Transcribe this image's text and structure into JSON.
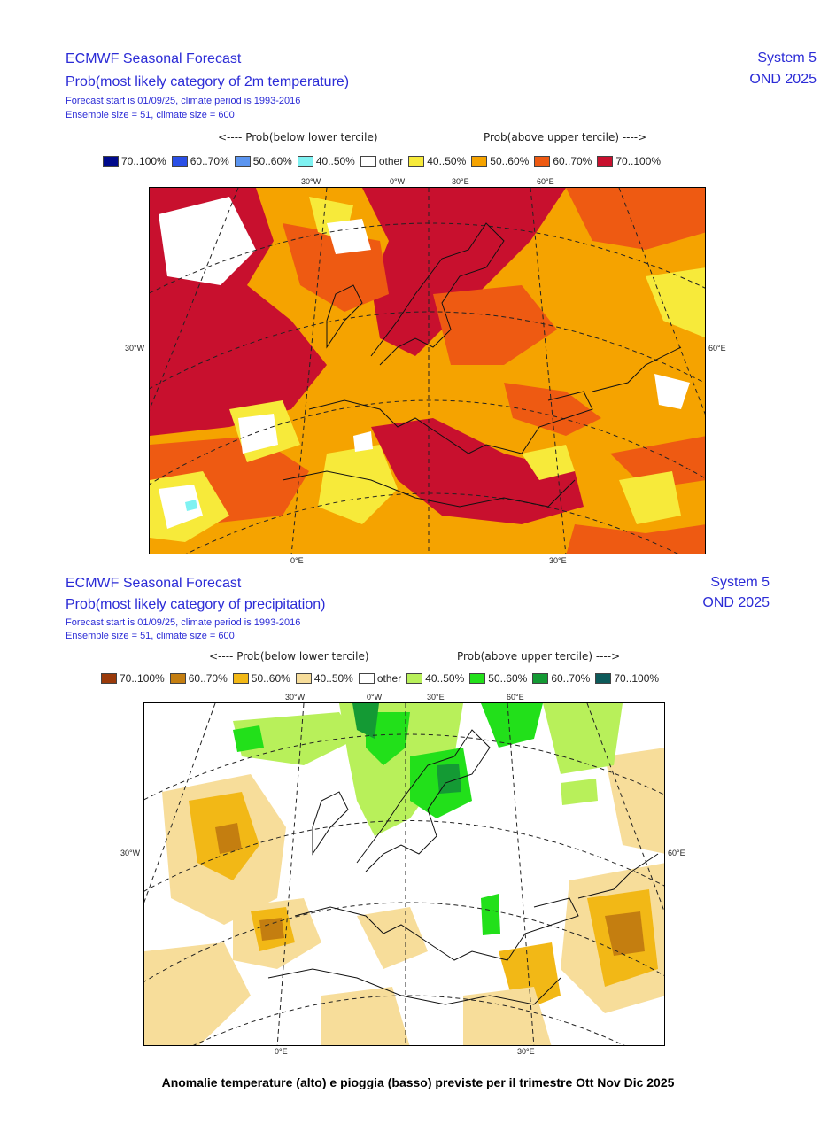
{
  "temperature": {
    "title": "ECMWF Seasonal Forecast",
    "subtitle": "Prob(most likely category of 2m temperature)",
    "info1": "Forecast start is 01/09/25, climate period is 1993-2016",
    "info2": "Ensemble size = 51, climate size = 600",
    "system": "System 5",
    "period": "OND 2025",
    "legend_below": "<---- Prob(below lower tercile)",
    "legend_above": "Prob(above upper tercile) ---->",
    "legend": [
      {
        "label": "70..100%",
        "color": "#000a8c"
      },
      {
        "label": "60..70%",
        "color": "#2a4fe6"
      },
      {
        "label": "50..60%",
        "color": "#5b95f0"
      },
      {
        "label": "40..50%",
        "color": "#7ff2f2"
      },
      {
        "label": "other",
        "color": "#ffffff"
      },
      {
        "label": "40..50%",
        "color": "#f7ea3a"
      },
      {
        "label": "50..60%",
        "color": "#f5a300"
      },
      {
        "label": "60..70%",
        "color": "#ee5a12"
      },
      {
        "label": "70..100%",
        "color": "#c8102e"
      }
    ],
    "coords": {
      "top": [
        "30°W",
        "0°W",
        "30°E",
        "60°E"
      ],
      "left": "30°W",
      "right": "60°E",
      "bottom": [
        "0°E",
        "30°E"
      ]
    }
  },
  "precipitation": {
    "title": "ECMWF Seasonal Forecast",
    "subtitle": "Prob(most likely category of precipitation)",
    "info1": "Forecast start is 01/09/25, climate period is 1993-2016",
    "info2": "Ensemble size = 51, climate size = 600",
    "system": "System 5",
    "period": "OND 2025",
    "legend_below": "<---- Prob(below lower tercile)",
    "legend_above": "Prob(above upper tercile) ---->",
    "legend": [
      {
        "label": "70..100%",
        "color": "#9a3a0a"
      },
      {
        "label": "60..70%",
        "color": "#c47e10"
      },
      {
        "label": "50..60%",
        "color": "#f2b816"
      },
      {
        "label": "40..50%",
        "color": "#f7dd9a"
      },
      {
        "label": "other",
        "color": "#ffffff"
      },
      {
        "label": "40..50%",
        "color": "#b8f05a"
      },
      {
        "label": "50..60%",
        "color": "#22e01a"
      },
      {
        "label": "60..70%",
        "color": "#149a34"
      },
      {
        "label": "70..100%",
        "color": "#0d5a5a"
      }
    ],
    "coords": {
      "top": [
        "30°W",
        "0°W",
        "30°E",
        "60°E"
      ],
      "left": "30°W",
      "right": "60°E",
      "bottom": [
        "0°E",
        "30°E"
      ]
    }
  },
  "caption": "Anomalie temperature (alto) e pioggia (basso) previste per il trimestre Ott Nov Dic 2025"
}
